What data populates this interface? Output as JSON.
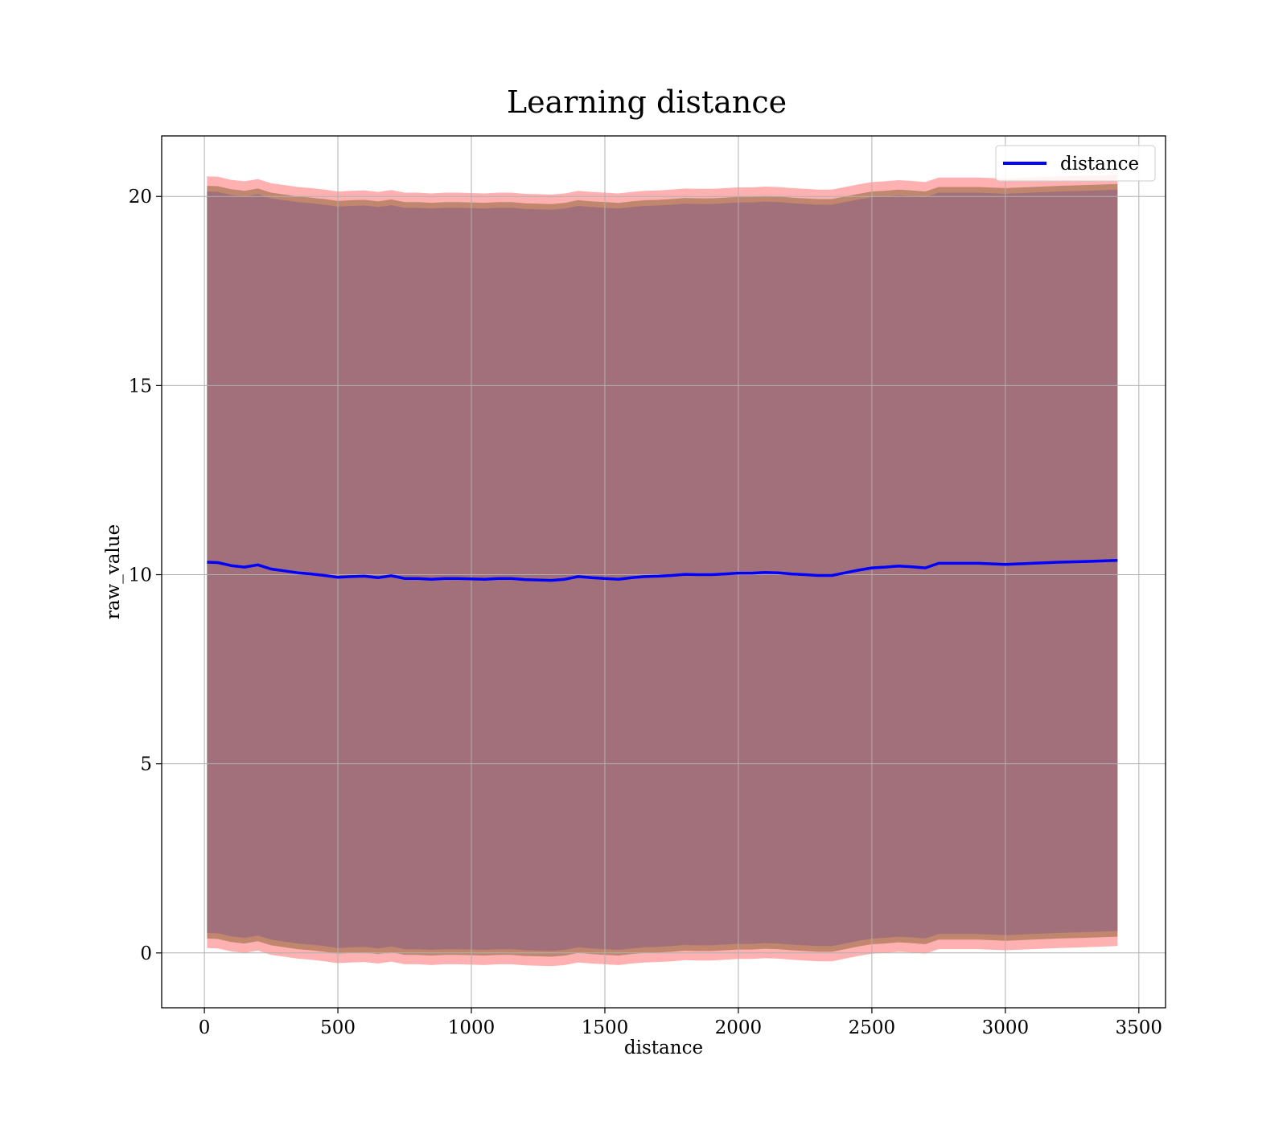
{
  "chart_data": {
    "type": "area",
    "title": "Learning distance",
    "xlabel": "distance",
    "ylabel": "raw_value",
    "xlim": [
      -160,
      3600
    ],
    "ylim": [
      -1.45,
      21.6
    ],
    "xticks": [
      0,
      500,
      1000,
      1500,
      2000,
      2500,
      3000,
      3500
    ],
    "yticks": [
      0,
      5,
      10,
      15,
      20
    ],
    "xtick_labels": [
      "0",
      "500",
      "1000",
      "1500",
      "2000",
      "2500",
      "3000",
      "3500"
    ],
    "ytick_labels": [
      "0",
      "5",
      "10",
      "15",
      "20"
    ],
    "grid": true,
    "legend": {
      "position": "top-right",
      "entries": [
        "distance"
      ]
    },
    "colors": {
      "line": "#0000ff",
      "band_outer": "#ffb0b0",
      "band_mid": "#c0866e",
      "band_inner": "#a2707a"
    },
    "x": [
      10,
      50,
      100,
      150,
      200,
      250,
      300,
      350,
      400,
      450,
      500,
      550,
      600,
      650,
      700,
      750,
      800,
      850,
      900,
      950,
      1000,
      1050,
      1100,
      1150,
      1200,
      1250,
      1300,
      1350,
      1400,
      1450,
      1500,
      1550,
      1600,
      1650,
      1700,
      1750,
      1800,
      1850,
      1900,
      1950,
      2000,
      2050,
      2100,
      2150,
      2200,
      2250,
      2300,
      2350,
      2400,
      2450,
      2500,
      2550,
      2600,
      2650,
      2700,
      2750,
      2800,
      2900,
      3000,
      3100,
      3200,
      3300,
      3420
    ],
    "series": [
      {
        "name": "distance",
        "values": [
          10.33,
          10.32,
          10.24,
          10.2,
          10.26,
          10.15,
          10.1,
          10.05,
          10.02,
          9.98,
          9.93,
          9.95,
          9.96,
          9.92,
          9.97,
          9.9,
          9.9,
          9.88,
          9.9,
          9.9,
          9.89,
          9.88,
          9.9,
          9.9,
          9.87,
          9.86,
          9.85,
          9.88,
          9.95,
          9.92,
          9.9,
          9.88,
          9.92,
          9.95,
          9.96,
          9.98,
          10.01,
          10.0,
          10.0,
          10.02,
          10.04,
          10.04,
          10.06,
          10.05,
          10.02,
          10.0,
          9.98,
          9.98,
          10.05,
          10.12,
          10.18,
          10.2,
          10.23,
          10.21,
          10.18,
          10.3,
          10.3,
          10.3,
          10.27,
          10.3,
          10.33,
          10.35,
          10.38
        ]
      }
    ]
  }
}
